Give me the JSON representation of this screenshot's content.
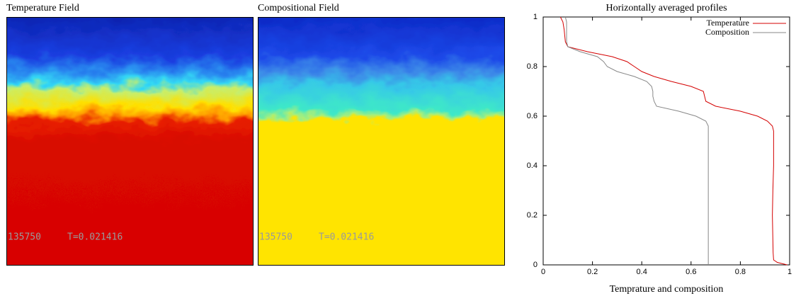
{
  "panels": [
    {
      "title": "Temperature Field",
      "step": "135750",
      "time": "T=0.021416"
    },
    {
      "title": "Compositional Field",
      "step": "135750",
      "time": "T=0.021416"
    }
  ],
  "chart_data": {
    "type": "line",
    "title": "Horizontally averaged profiles",
    "x_label": "Temprature and composition",
    "y": [
      1,
      0.98,
      0.95,
      0.9,
      0.88,
      0.86,
      0.84,
      0.82,
      0.8,
      0.78,
      0.76,
      0.74,
      0.72,
      0.7,
      0.68,
      0.66,
      0.64,
      0.62,
      0.6,
      0.58,
      0.56,
      0.54,
      0.5,
      0.4,
      0.3,
      0.2,
      0.1,
      0.05,
      0.02,
      0.01,
      0
    ],
    "series": [
      {
        "name": "Temperature",
        "color": "#d40000",
        "values": [
          0.07,
          0.08,
          0.085,
          0.09,
          0.1,
          0.18,
          0.28,
          0.34,
          0.37,
          0.4,
          0.45,
          0.52,
          0.6,
          0.65,
          0.655,
          0.66,
          0.7,
          0.8,
          0.87,
          0.91,
          0.93,
          0.935,
          0.935,
          0.935,
          0.932,
          0.93,
          0.932,
          0.933,
          0.935,
          0.95,
          0.99
        ]
      },
      {
        "name": "Composition",
        "color": "#888888",
        "values": [
          0.09,
          0.095,
          0.095,
          0.095,
          0.1,
          0.15,
          0.22,
          0.245,
          0.26,
          0.3,
          0.37,
          0.42,
          0.44,
          0.445,
          0.445,
          0.45,
          0.46,
          0.55,
          0.62,
          0.66,
          0.67,
          0.67,
          0.67,
          0.67,
          0.67,
          0.67,
          0.67,
          0.67,
          0.67,
          0.67,
          0.67
        ]
      }
    ],
    "xlim": [
      0,
      1
    ],
    "ylim": [
      0,
      1
    ],
    "xticks": [
      0,
      0.2,
      0.4,
      0.6,
      0.8,
      1
    ],
    "yticks": [
      0,
      0.2,
      0.4,
      0.6,
      0.8,
      1
    ],
    "legend": "upper right"
  }
}
